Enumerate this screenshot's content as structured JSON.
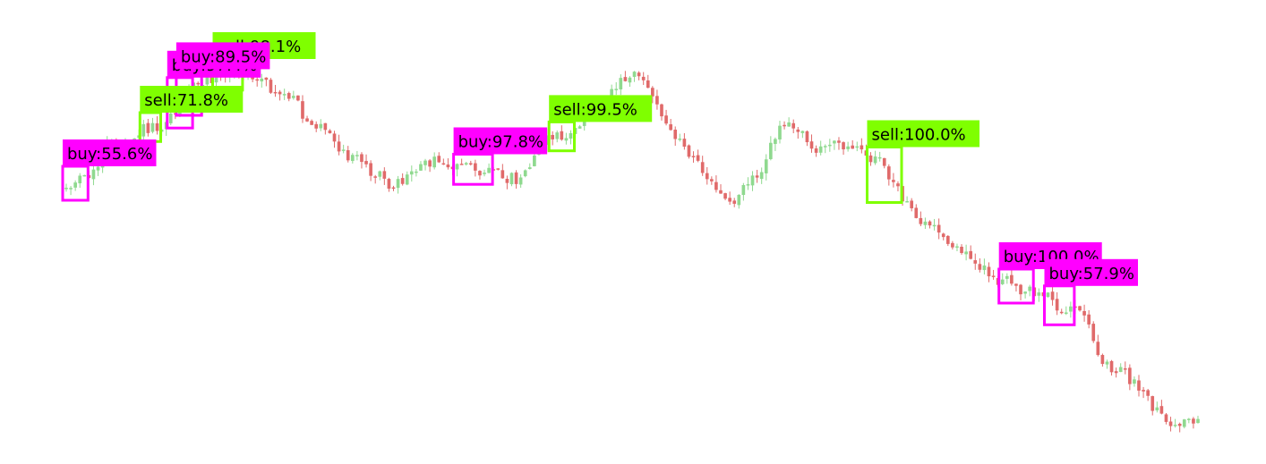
{
  "colors": {
    "background": "#ffffff",
    "up_candle": "#8fd98f",
    "down_candle": "#e06a6a",
    "buy_signal": "#ff00ff",
    "sell_signal": "#7fff00",
    "label_text": "#000000"
  },
  "chart_data": {
    "type": "candlestick",
    "title": "",
    "xlabel": "",
    "ylabel": "",
    "axes_visible": false,
    "grid": false,
    "price_path_shape": "rise to early peaks, sideways dip, second peak near candle 114, steady decline to trough near candle 210, partial recovery",
    "price_path_anchors": {
      "index": [
        0,
        4,
        10,
        20,
        30,
        38,
        48,
        55,
        62,
        72,
        80,
        90,
        100,
        106,
        112,
        116,
        125,
        134,
        138,
        146,
        152,
        158,
        165,
        172,
        178,
        188,
        196,
        206,
        212,
        222,
        230,
        244,
        250
      ],
      "value": [
        190,
        180,
        140,
        120,
        70,
        60,
        85,
        120,
        155,
        185,
        160,
        170,
        180,
        135,
        130,
        95,
        60,
        130,
        160,
        205,
        175,
        115,
        145,
        140,
        160,
        225,
        260,
        295,
        305,
        330,
        390,
        455,
        445
      ]
    },
    "candle_count": 250,
    "value_orientation": "lower value = higher on screen",
    "signals": [
      {
        "type": "buy",
        "label": "buy:55.6%",
        "index_start": 0,
        "index_end": 4
      },
      {
        "type": "buy",
        "label": "buy:97.4%",
        "index_start": 23,
        "index_end": 27
      },
      {
        "type": "sell",
        "label": "sell:71.8%",
        "index_start": 17,
        "index_end": 20
      },
      {
        "type": "sell",
        "label": "sell:98.1%",
        "index_start": 33,
        "index_end": 38
      },
      {
        "type": "buy",
        "label": "buy:89.5%",
        "index_start": 25,
        "index_end": 29
      },
      {
        "type": "buy",
        "label": "buy:97.8%",
        "index_start": 86,
        "index_end": 93
      },
      {
        "type": "sell",
        "label": "sell:99.5%",
        "index_start": 107,
        "index_end": 111
      },
      {
        "type": "sell",
        "label": "sell:100.0%",
        "index_start": 177,
        "index_end": 183
      },
      {
        "type": "buy",
        "label": "buy:100.0%",
        "index_start": 206,
        "index_end": 212
      },
      {
        "type": "buy",
        "label": "buy:57.9%",
        "index_start": 216,
        "index_end": 221
      }
    ]
  }
}
